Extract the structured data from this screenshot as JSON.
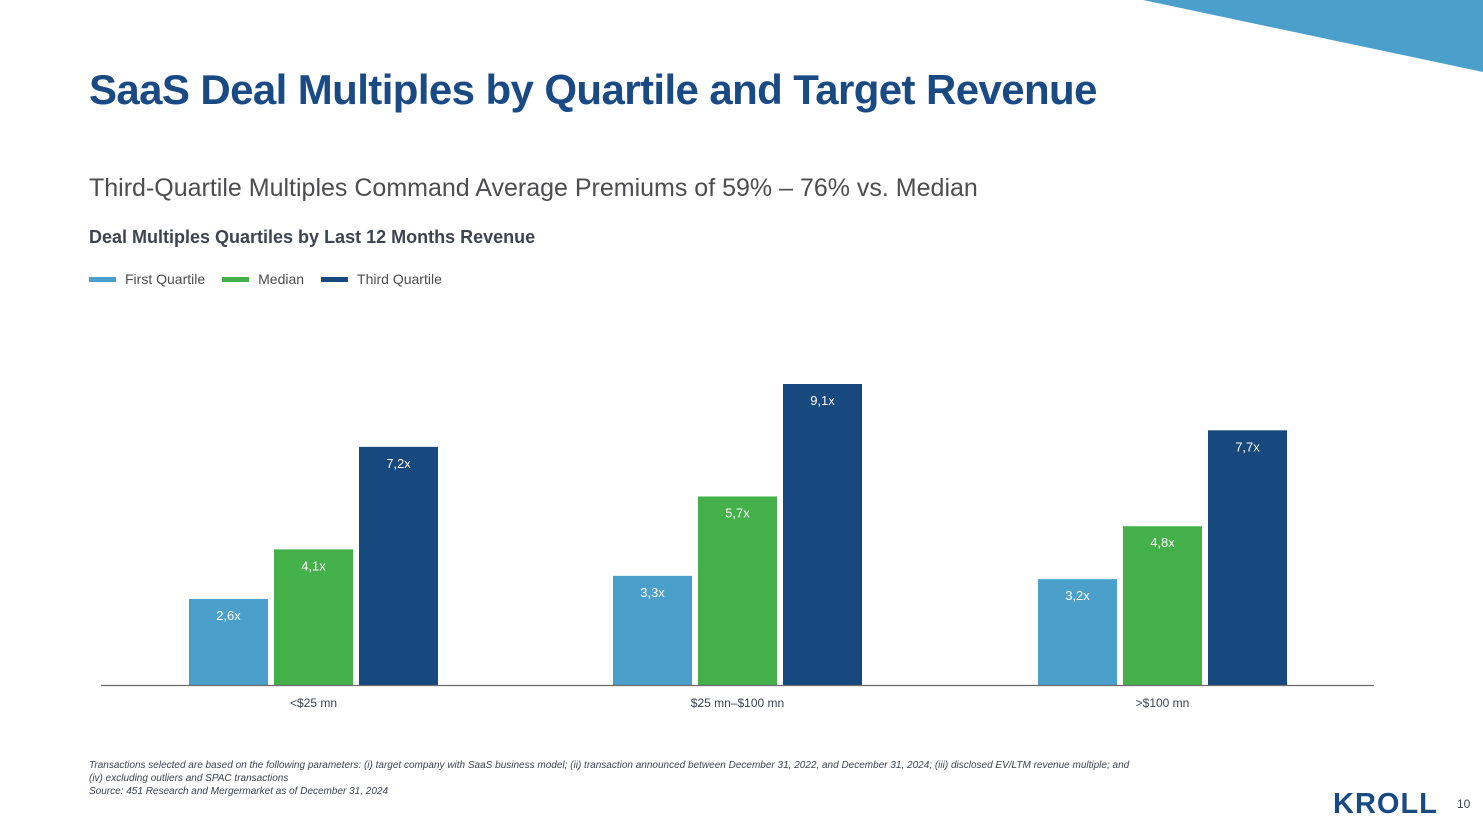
{
  "title": "SaaS Deal Multiples by Quartile and Target Revenue",
  "subtitle": "Third-Quartile Multiples Command Average Premiums of 59% – 76% vs. Median",
  "footnote": {
    "line1": "Transactions selected are based on the following parameters: (i) target company with SaaS business model; (ii) transaction announced between December 31, 2022, and December 31, 2024; (iii) disclosed EV/LTM revenue multiple; and",
    "line2": "(iv) excluding outliers and SPAC transactions",
    "line3": "Source: 451 Research and Mergermarket as of December 31, 2024"
  },
  "logo": "KROLL",
  "page_number": "10",
  "colors": {
    "title": "#1a4a84",
    "accent_triangle": "#4b9fcb"
  },
  "chart_data": {
    "type": "bar",
    "title": "Deal Multiples Quartiles by Last 12 Months Revenue",
    "xlabel": "",
    "ylabel": "",
    "ylim": [
      0,
      9.1
    ],
    "grid": false,
    "legend_position": "top-left",
    "categories": [
      "<$25 mn",
      "$25 mn–$100 mn",
      ">$100 mn"
    ],
    "series": [
      {
        "name": "First Quartile",
        "color": "#4b9fcb",
        "values": [
          2.6,
          3.3,
          3.2
        ],
        "labels": [
          "2,6x",
          "3,3x",
          "3,2x"
        ]
      },
      {
        "name": "Median",
        "color": "#44b04a",
        "values": [
          4.1,
          5.7,
          4.8
        ],
        "labels": [
          "4,1x",
          "5,7x",
          "4,8x"
        ]
      },
      {
        "name": "Third Quartile",
        "color": "#17487e",
        "values": [
          7.2,
          9.1,
          7.7
        ],
        "labels": [
          "7,2x",
          "9,1x",
          "7,7x"
        ]
      }
    ]
  }
}
